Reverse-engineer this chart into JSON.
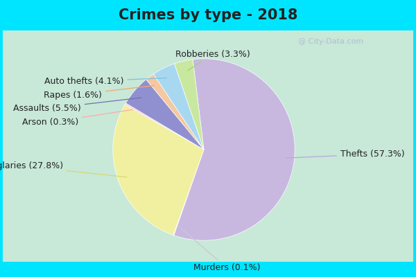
{
  "title": "Crimes by type - 2018",
  "slices": [
    {
      "label": "Thefts",
      "pct": 57.3,
      "color": "#c8b8e0"
    },
    {
      "label": "Murders",
      "pct": 0.1,
      "color": "#d8d8e8"
    },
    {
      "label": "Burglaries",
      "pct": 27.8,
      "color": "#f0f0a0"
    },
    {
      "label": "Arson",
      "pct": 0.3,
      "color": "#ffcccc"
    },
    {
      "label": "Assaults",
      "pct": 5.5,
      "color": "#9090d0"
    },
    {
      "label": "Rapes",
      "pct": 1.6,
      "color": "#f5c8a0"
    },
    {
      "label": "Auto thefts",
      "pct": 4.1,
      "color": "#a8d8f0"
    },
    {
      "label": "Robberies",
      "pct": 3.3,
      "color": "#c8e8a0"
    }
  ],
  "startangle": 97,
  "bg_cyan": "#00e5ff",
  "bg_inner": "#c8e8d8",
  "title_color": "#222222",
  "label_color": "#222222",
  "title_fontsize": 15,
  "label_fontsize": 9,
  "watermark": "@ City-Data.com"
}
